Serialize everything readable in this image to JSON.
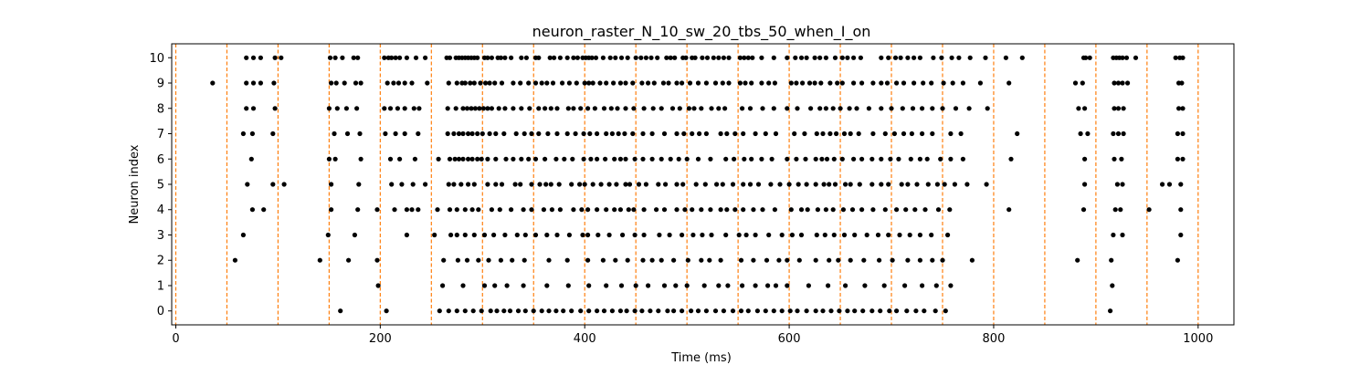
{
  "chart_data": {
    "type": "scatter",
    "title": "neuron_raster_N_10_sw_20_tbs_50_when_I_on",
    "xlabel": "Time (ms)",
    "ylabel": "Neuron index",
    "xlim": [
      -4,
      1035
    ],
    "ylim": [
      -0.55,
      10.55
    ],
    "xticks": [
      0,
      200,
      400,
      600,
      800,
      1000
    ],
    "yticks": [
      0,
      1,
      2,
      3,
      4,
      5,
      6,
      7,
      8,
      9,
      10
    ],
    "grid": false,
    "marker_color": "#000000",
    "vline_color": "#ff7f0e",
    "vlines": [
      0,
      50,
      100,
      150,
      200,
      250,
      300,
      350,
      400,
      450,
      500,
      550,
      600,
      650,
      700,
      750,
      800,
      850,
      900,
      950,
      1000
    ],
    "spikes": [
      {
        "neuron": 10,
        "times": [
          69,
          76,
          83,
          97,
          103,
          151,
          156,
          163,
          174,
          178,
          204,
          208,
          211,
          215,
          219,
          226,
          235,
          244,
          265,
          268,
          274,
          277,
          280,
          283,
          286,
          289,
          292,
          295,
          302,
          305,
          309,
          315,
          318,
          322,
          328,
          338,
          343,
          352,
          355,
          366,
          370,
          376,
          383,
          389,
          393,
          398,
          401,
          404,
          407,
          411,
          418,
          425,
          430,
          436,
          442,
          450,
          455,
          460,
          465,
          471,
          480,
          484,
          488,
          496,
          499,
          505,
          508,
          515,
          520,
          526,
          531,
          536,
          541,
          552,
          556,
          560,
          564,
          573,
          585,
          598,
          606,
          612,
          617,
          625,
          630,
          636,
          645,
          652,
          657,
          663,
          670,
          690,
          697,
          704,
          709,
          716,
          722,
          728,
          741,
          749,
          759,
          766,
          777,
          792,
          812,
          828,
          888,
          890,
          894,
          917,
          920,
          923,
          926,
          930,
          939,
          978,
          982,
          985
        ]
      },
      {
        "neuron": 9,
        "times": [
          36,
          69,
          76,
          83,
          96,
          152,
          157,
          165,
          176,
          181,
          207,
          213,
          218,
          224,
          231,
          246,
          267,
          275,
          280,
          283,
          288,
          292,
          298,
          303,
          307,
          312,
          319,
          330,
          337,
          345,
          352,
          358,
          363,
          369,
          378,
          385,
          392,
          400,
          404,
          408,
          415,
          421,
          428,
          435,
          440,
          447,
          456,
          462,
          468,
          477,
          482,
          490,
          495,
          503,
          511,
          519,
          528,
          535,
          541,
          552,
          557,
          563,
          573,
          580,
          586,
          602,
          607,
          613,
          620,
          625,
          631,
          640,
          647,
          652,
          663,
          671,
          682,
          690,
          696,
          705,
          712,
          722,
          731,
          739,
          751,
          760,
          770,
          787,
          815,
          880,
          887,
          918,
          922,
          926,
          931,
          981,
          984
        ]
      },
      {
        "neuron": 8,
        "times": [
          69,
          76,
          97,
          150,
          158,
          167,
          177,
          204,
          210,
          217,
          224,
          233,
          238,
          266,
          274,
          281,
          285,
          289,
          293,
          297,
          301,
          305,
          309,
          316,
          322,
          330,
          338,
          346,
          355,
          361,
          367,
          373,
          384,
          389,
          396,
          403,
          410,
          419,
          426,
          432,
          440,
          448,
          458,
          467,
          475,
          486,
          493,
          502,
          507,
          514,
          524,
          531,
          537,
          554,
          562,
          574,
          585,
          598,
          608,
          621,
          630,
          636,
          643,
          650,
          659,
          666,
          678,
          690,
          700,
          711,
          721,
          730,
          740,
          750,
          763,
          776,
          794,
          883,
          889,
          918,
          922,
          927,
          981,
          985
        ]
      },
      {
        "neuron": 7,
        "times": [
          66,
          75,
          95,
          155,
          168,
          180,
          205,
          215,
          224,
          237,
          266,
          272,
          277,
          281,
          286,
          290,
          295,
          300,
          307,
          313,
          321,
          333,
          341,
          348,
          355,
          364,
          373,
          383,
          391,
          399,
          405,
          412,
          421,
          427,
          433,
          439,
          447,
          457,
          466,
          478,
          490,
          497,
          505,
          512,
          519,
          533,
          539,
          547,
          555,
          567,
          577,
          587,
          605,
          615,
          627,
          633,
          640,
          646,
          654,
          660,
          668,
          682,
          694,
          703,
          712,
          720,
          730,
          740,
          758,
          768,
          823,
          885,
          892,
          917,
          922,
          927,
          980,
          985
        ]
      },
      {
        "neuron": 6,
        "times": [
          74,
          150,
          156,
          181,
          210,
          219,
          234,
          257,
          268,
          273,
          277,
          281,
          286,
          290,
          295,
          299,
          305,
          313,
          323,
          330,
          338,
          345,
          352,
          361,
          372,
          380,
          388,
          399,
          406,
          412,
          420,
          429,
          435,
          440,
          449,
          457,
          466,
          475,
          484,
          492,
          500,
          511,
          523,
          538,
          546,
          556,
          563,
          573,
          583,
          598,
          607,
          616,
          626,
          632,
          637,
          644,
          652,
          663,
          671,
          681,
          690,
          699,
          707,
          719,
          728,
          735,
          748,
          758,
          770,
          817,
          889,
          918,
          925,
          980,
          985
        ]
      },
      {
        "neuron": 5,
        "times": [
          70,
          95,
          106,
          152,
          179,
          211,
          221,
          232,
          244,
          267,
          272,
          279,
          286,
          292,
          305,
          313,
          319,
          332,
          337,
          348,
          356,
          362,
          367,
          375,
          387,
          395,
          400,
          408,
          416,
          424,
          431,
          440,
          444,
          453,
          460,
          472,
          479,
          490,
          496,
          509,
          518,
          529,
          535,
          545,
          555,
          562,
          570,
          582,
          591,
          600,
          609,
          617,
          626,
          634,
          639,
          645,
          655,
          660,
          669,
          681,
          690,
          697,
          710,
          716,
          725,
          736,
          745,
          752,
          762,
          774,
          793,
          889,
          921,
          926,
          965,
          972,
          983
        ]
      },
      {
        "neuron": 4,
        "times": [
          75,
          86,
          152,
          178,
          197,
          214,
          226,
          231,
          237,
          256,
          268,
          275,
          283,
          290,
          296,
          309,
          317,
          328,
          340,
          348,
          360,
          368,
          376,
          389,
          397,
          403,
          412,
          421,
          429,
          435,
          443,
          448,
          458,
          470,
          478,
          490,
          498,
          505,
          514,
          523,
          533,
          539,
          547,
          555,
          565,
          574,
          586,
          602,
          612,
          618,
          628,
          636,
          643,
          653,
          662,
          671,
          682,
          694,
          705,
          714,
          723,
          733,
          746,
          757,
          815,
          888,
          919,
          924,
          952,
          983
        ]
      },
      {
        "neuron": 3,
        "times": [
          66,
          149,
          175,
          226,
          253,
          269,
          275,
          283,
          292,
          302,
          311,
          322,
          334,
          342,
          352,
          363,
          373,
          385,
          398,
          403,
          413,
          424,
          437,
          449,
          458,
          473,
          483,
          495,
          506,
          515,
          524,
          538,
          551,
          558,
          567,
          580,
          593,
          603,
          612,
          627,
          635,
          644,
          654,
          664,
          676,
          687,
          697,
          708,
          718,
          728,
          739,
          755,
          917,
          926,
          983
        ]
      },
      {
        "neuron": 2,
        "times": [
          58,
          141,
          169,
          197,
          262,
          276,
          285,
          296,
          306,
          318,
          329,
          341,
          365,
          383,
          403,
          418,
          430,
          442,
          457,
          466,
          475,
          487,
          501,
          514,
          522,
          533,
          553,
          565,
          578,
          590,
          598,
          610,
          626,
          639,
          648,
          660,
          673,
          688,
          701,
          716,
          728,
          740,
          750,
          779,
          882,
          915,
          980
        ]
      },
      {
        "neuron": 1,
        "times": [
          198,
          261,
          281,
          302,
          312,
          324,
          340,
          363,
          384,
          404,
          421,
          436,
          450,
          462,
          478,
          489,
          500,
          517,
          531,
          540,
          554,
          567,
          579,
          587,
          598,
          619,
          638,
          655,
          674,
          693,
          713,
          730,
          744,
          758,
          916
        ]
      },
      {
        "neuron": 0,
        "times": [
          161,
          206,
          258,
          267,
          275,
          283,
          291,
          299,
          308,
          314,
          321,
          327,
          335,
          342,
          350,
          358,
          365,
          372,
          379,
          387,
          396,
          404,
          412,
          419,
          427,
          435,
          441,
          449,
          456,
          464,
          472,
          481,
          487,
          495,
          504,
          511,
          519,
          528,
          536,
          545,
          553,
          560,
          569,
          577,
          585,
          593,
          601,
          608,
          617,
          626,
          633,
          641,
          649,
          657,
          664,
          672,
          681,
          689,
          698,
          705,
          715,
          724,
          732,
          743,
          753,
          914
        ]
      }
    ]
  }
}
